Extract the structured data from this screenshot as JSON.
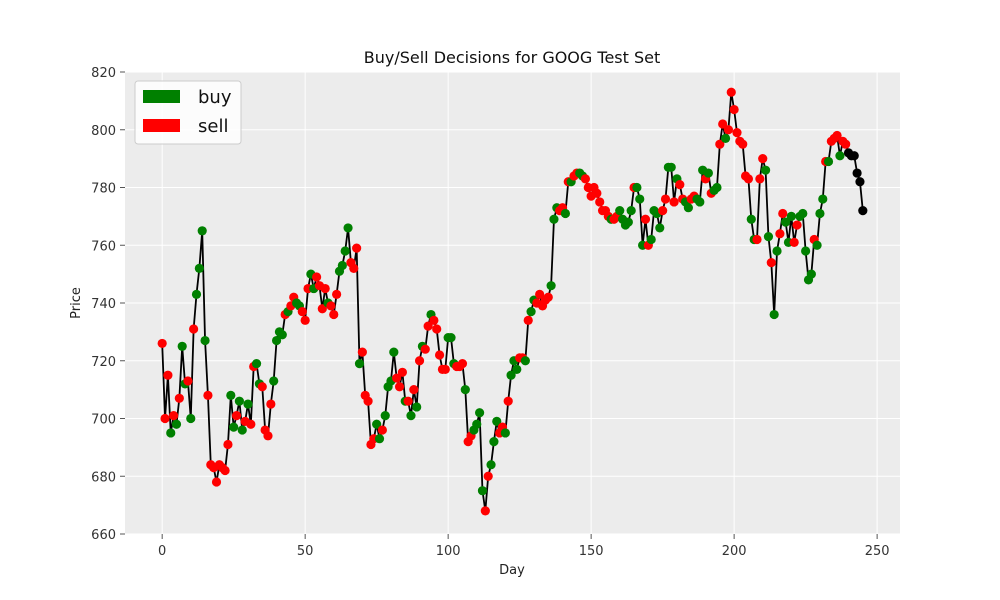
{
  "chart_data": {
    "type": "line",
    "title": "Buy/Sell Decisions for GOOG Test Set",
    "xlabel": "Day",
    "ylabel": "Price",
    "xlim": [
      -13,
      258
    ],
    "ylim": [
      660,
      820
    ],
    "xticks": [
      "0",
      "50",
      "100",
      "150",
      "200",
      "250"
    ],
    "yticks": [
      "660",
      "680",
      "700",
      "720",
      "740",
      "760",
      "780",
      "800",
      "820"
    ],
    "grid": true,
    "legend": {
      "placement": "top-left",
      "entries": [
        {
          "label": "buy",
          "color": "#008000"
        },
        {
          "label": "sell",
          "color": "#ff0000"
        }
      ]
    },
    "line_color": "#000000",
    "background": "#ececec",
    "series": [
      {
        "name": "price",
        "x": [
          0,
          1,
          2,
          3,
          4,
          5,
          6,
          7,
          8,
          9,
          10,
          11,
          12,
          13,
          14,
          15,
          16,
          17,
          18,
          19,
          20,
          21,
          22,
          23,
          24,
          25,
          26,
          27,
          28,
          29,
          30,
          31,
          32,
          33,
          34,
          35,
          36,
          37,
          38,
          39,
          40,
          41,
          42,
          43,
          44,
          45,
          46,
          47,
          48,
          49,
          50,
          51,
          52,
          53,
          54,
          55,
          56,
          57,
          58,
          59,
          60,
          61,
          62,
          63,
          64,
          65,
          66,
          67,
          68,
          69,
          70,
          71,
          72,
          73,
          74,
          75,
          76,
          77,
          78,
          79,
          80,
          81,
          82,
          83,
          84,
          85,
          86,
          87,
          88,
          89,
          90,
          91,
          92,
          93,
          94,
          95,
          96,
          97,
          98,
          99,
          100,
          101,
          102,
          103,
          104,
          105,
          106,
          107,
          108,
          109,
          110,
          111,
          112,
          113,
          114,
          115,
          116,
          117,
          118,
          119,
          120,
          121,
          122,
          123,
          124,
          125,
          126,
          127,
          128,
          129,
          130,
          131,
          132,
          133,
          134,
          135,
          136,
          137,
          138,
          139,
          140,
          141,
          142,
          143,
          144,
          145,
          146,
          147,
          148,
          149,
          150,
          151,
          152,
          153,
          154,
          155,
          156,
          157,
          158,
          159,
          160,
          161,
          162,
          163,
          164,
          165,
          166,
          167,
          168,
          169,
          170,
          171,
          172,
          173,
          174,
          175,
          176,
          177,
          178,
          179,
          180,
          181,
          182,
          183,
          184,
          185,
          186,
          187,
          188,
          189,
          190,
          191,
          192,
          193,
          194,
          195,
          196,
          197,
          198,
          199,
          200,
          201,
          202,
          203,
          204,
          205,
          206,
          207,
          208,
          209,
          210,
          211,
          212,
          213,
          214,
          215,
          216,
          217,
          218,
          219,
          220,
          221,
          222,
          223,
          224,
          225,
          226,
          227,
          228,
          229,
          230,
          231,
          232,
          233,
          234,
          235,
          236,
          237,
          238,
          239,
          240,
          241,
          242,
          243,
          244,
          245
        ],
        "values": [
          726,
          700,
          715,
          695,
          701,
          698,
          707,
          725,
          712,
          713,
          700,
          731,
          743,
          752,
          765,
          727,
          708,
          684,
          683,
          678,
          684,
          683,
          682,
          691,
          708,
          697,
          701,
          706,
          696,
          699,
          705,
          698,
          718,
          719,
          712,
          711,
          696,
          694,
          705,
          713,
          727,
          730,
          729,
          736,
          737,
          739,
          742,
          740,
          739,
          737,
          734,
          745,
          750,
          745,
          749,
          746,
          738,
          745,
          740,
          739,
          736,
          743,
          751,
          753,
          758,
          766,
          754,
          752,
          759,
          719,
          723,
          708,
          706,
          691,
          693,
          698,
          693,
          696,
          701,
          711,
          713,
          723,
          714,
          711,
          716,
          706,
          706,
          701,
          710,
          704,
          720,
          725,
          724,
          732,
          736,
          734,
          731,
          722,
          717,
          717,
          728,
          728,
          719,
          718,
          718,
          719,
          710,
          692,
          694,
          696,
          698,
          702,
          675,
          668,
          680,
          684,
          692,
          699,
          695,
          697,
          695,
          706,
          715,
          720,
          717,
          721,
          721,
          720,
          734,
          737,
          741,
          740,
          743,
          739,
          741,
          742,
          746,
          769,
          773,
          772,
          773,
          771,
          782,
          782,
          784,
          785,
          785,
          784,
          783,
          780,
          777,
          780,
          778,
          775,
          772,
          772,
          770,
          769,
          769,
          770,
          772,
          769,
          767,
          768,
          772,
          780,
          780,
          776,
          760,
          769,
          760,
          762,
          772,
          771,
          766,
          772,
          776,
          787,
          787,
          775,
          783,
          781,
          776,
          775,
          773,
          776,
          777,
          776,
          775,
          786,
          783,
          785,
          778,
          779,
          780,
          795,
          802,
          797,
          800,
          813,
          807,
          799,
          796,
          795,
          784,
          783,
          769,
          762,
          762,
          783,
          790,
          786,
          763,
          754,
          736,
          758,
          764,
          771,
          768,
          761,
          770,
          761,
          767,
          770,
          771,
          758,
          748,
          750,
          762,
          760,
          771,
          776,
          789,
          789,
          796,
          797,
          798,
          791,
          796,
          795,
          792,
          791,
          791,
          785,
          782,
          772
        ],
        "decisions": [
          "sell",
          "sell",
          "sell",
          "buy",
          "sell",
          "buy",
          "sell",
          "buy",
          "buy",
          "sell",
          "buy",
          "sell",
          "buy",
          "buy",
          "buy",
          "buy",
          "sell",
          "sell",
          "sell",
          "sell",
          "sell",
          "sell",
          "sell",
          "sell",
          "buy",
          "buy",
          "sell",
          "buy",
          "buy",
          "sell",
          "buy",
          "sell",
          "sell",
          "buy",
          "buy",
          "sell",
          "sell",
          "sell",
          "sell",
          "buy",
          "buy",
          "buy",
          "buy",
          "sell",
          "buy",
          "sell",
          "sell",
          "buy",
          "buy",
          "sell",
          "sell",
          "sell",
          "buy",
          "buy",
          "sell",
          "sell",
          "sell",
          "sell",
          "buy",
          "sell",
          "sell",
          "sell",
          "buy",
          "buy",
          "buy",
          "buy",
          "sell",
          "sell",
          "sell",
          "buy",
          "sell",
          "sell",
          "sell",
          "sell",
          "sell",
          "buy",
          "buy",
          "sell",
          "buy",
          "buy",
          "buy",
          "buy",
          "sell",
          "sell",
          "sell",
          "buy",
          "sell",
          "buy",
          "sell",
          "buy",
          "sell",
          "buy",
          "sell",
          "sell",
          "buy",
          "sell",
          "sell",
          "sell",
          "sell",
          "sell",
          "buy",
          "buy",
          "buy",
          "sell",
          "sell",
          "sell",
          "buy",
          "sell",
          "sell",
          "buy",
          "buy",
          "buy",
          "buy",
          "sell",
          "sell",
          "buy",
          "buy",
          "buy",
          "sell",
          "sell",
          "buy",
          "sell",
          "buy",
          "buy",
          "buy",
          "sell",
          "sell",
          "buy",
          "sell",
          "buy",
          "buy",
          "sell",
          "sell",
          "sell",
          "sell",
          "sell",
          "buy",
          "buy",
          "buy",
          "sell",
          "sell",
          "buy",
          "sell",
          "buy",
          "sell",
          "sell",
          "buy",
          "buy",
          "sell",
          "sell",
          "sell",
          "sell",
          "sell",
          "sell",
          "sell",
          "sell",
          "sell",
          "buy",
          "sell",
          "sell",
          "buy",
          "buy",
          "buy",
          "buy",
          "buy",
          "sell",
          "buy",
          "buy",
          "buy",
          "sell",
          "sell",
          "buy",
          "buy",
          "buy",
          "buy",
          "sell",
          "sell",
          "buy",
          "buy",
          "sell",
          "buy",
          "sell",
          "sell",
          "buy",
          "buy",
          "sell",
          "sell",
          "buy",
          "buy",
          "buy",
          "sell",
          "buy",
          "sell",
          "buy",
          "buy",
          "sell",
          "sell",
          "buy",
          "sell",
          "sell",
          "sell",
          "sell",
          "sell",
          "sell",
          "sell",
          "sell",
          "buy",
          "buy",
          "sell",
          "sell",
          "sell",
          "buy",
          "buy",
          "sell",
          "buy",
          "buy",
          "sell",
          "sell",
          "buy",
          "buy",
          "buy",
          "sell",
          "sell",
          "buy",
          "buy",
          "buy",
          "buy",
          "buy",
          "sell",
          "buy",
          "buy",
          "buy",
          "sell",
          "buy",
          "sell",
          "sell",
          "sell",
          "buy",
          "sell",
          "sell"
        ]
      }
    ]
  }
}
